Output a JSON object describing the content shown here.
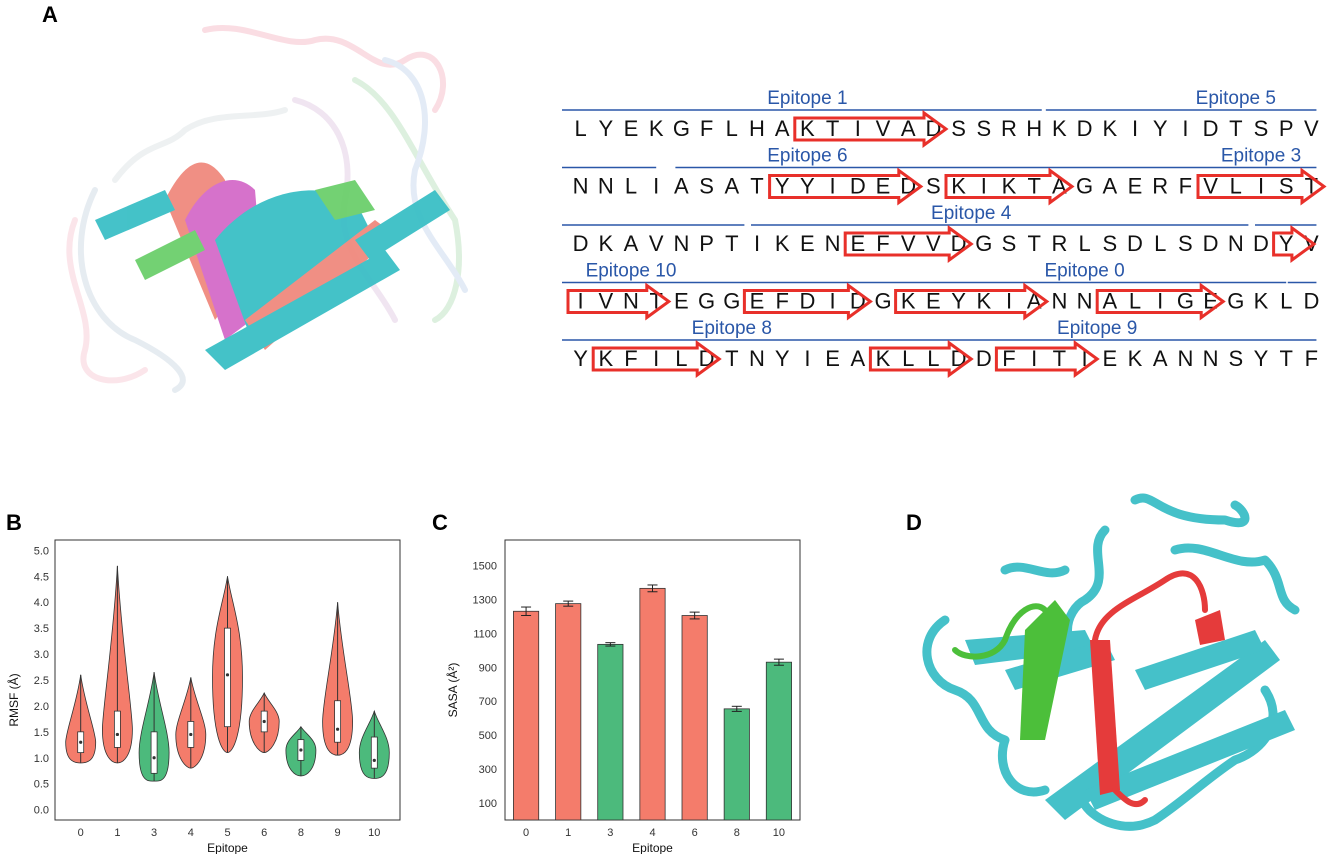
{
  "panels": {
    "a": "A",
    "b": "B",
    "c": "C",
    "d": "D"
  },
  "sequence": {
    "rows": [
      "LYEKGFLHAK TIVADSSRHK DKIYIDTSPV",
      "NNLIASATYY IDEDSKIKTA GAERFVLIST",
      "DKAVNPTIKE NEFVVDGSTR LSDLSDNDYV",
      "IVNTEGGEFD IDGKEYKIAN NALIGEGKLD",
      "YKFILDTNYI EAKLLDDFIT IEKANNSYTF"
    ],
    "epitope_labels": [
      {
        "text": "Epitope 1",
        "row": 0,
        "col": 9.5
      },
      {
        "text": "Epitope 5",
        "row": 0,
        "col": 26.5
      },
      {
        "text": "Epitope 6",
        "row": 1,
        "col": 9.5
      },
      {
        "text": "Epitope 3",
        "row": 1,
        "col": 27.5
      },
      {
        "text": "Epitope 4",
        "row": 2,
        "col": 16
      },
      {
        "text": "Epitope 10",
        "row": 3,
        "col": 2.5
      },
      {
        "text": "Epitope 0",
        "row": 3,
        "col": 20.5
      },
      {
        "text": "Epitope 8",
        "row": 4,
        "col": 6.5
      },
      {
        "text": "Epitope 9",
        "row": 4,
        "col": 21
      }
    ],
    "arrows": [
      {
        "row": 0,
        "start": 9,
        "end": 15
      },
      {
        "row": 1,
        "start": 8,
        "end": 14
      },
      {
        "row": 1,
        "start": 15,
        "end": 20
      },
      {
        "row": 1,
        "start": 25,
        "end": 30
      },
      {
        "row": 2,
        "start": 11,
        "end": 16
      },
      {
        "row": 2,
        "start": 28,
        "end": 29.6
      },
      {
        "row": 3,
        "start": 0,
        "end": 4
      },
      {
        "row": 3,
        "start": 7,
        "end": 12
      },
      {
        "row": 3,
        "start": 13,
        "end": 19
      },
      {
        "row": 3,
        "start": 21,
        "end": 26
      },
      {
        "row": 4,
        "start": 1,
        "end": 6
      },
      {
        "row": 4,
        "start": 12,
        "end": 16
      },
      {
        "row": 4,
        "start": 17,
        "end": 21
      }
    ],
    "blue_lines": [
      {
        "row": 0,
        "from": 0,
        "to": 18.8
      },
      {
        "row": 0,
        "from": 19.2,
        "to": 29.7
      },
      {
        "row": 1,
        "from": 0,
        "to": 3.5
      },
      {
        "row": 1,
        "from": 4.5,
        "to": 29.7
      },
      {
        "row": 2,
        "from": 0,
        "to": 7
      },
      {
        "row": 2,
        "from": 7.5,
        "to": 27
      },
      {
        "row": 2,
        "from": 27.5,
        "to": 29.7
      },
      {
        "row": 3,
        "from": 0,
        "to": 28.5
      },
      {
        "row": 3,
        "from": 28.8,
        "to": 29.7
      },
      {
        "row": 4,
        "from": 0,
        "to": 29.7
      }
    ]
  },
  "chart_data": [
    {
      "type": "violin",
      "panel": "B",
      "xlabel": "Epitope",
      "ylabel": "RMSF (Å)",
      "ylim": [
        0.0,
        5.0
      ],
      "yticks": [
        "0.0",
        "0.5",
        "1.0",
        "1.5",
        "2.0",
        "2.5",
        "3.0",
        "3.5",
        "4.0",
        "4.5",
        "5.0"
      ],
      "categories": [
        "0",
        "1",
        "3",
        "4",
        "5",
        "6",
        "8",
        "9",
        "10"
      ],
      "colors": [
        "#f47c6b",
        "#f47c6b",
        "#4cba7c",
        "#f47c6b",
        "#f47c6b",
        "#f47c6b",
        "#4cba7c",
        "#f47c6b",
        "#4cba7c"
      ],
      "min": [
        0.9,
        0.9,
        0.55,
        0.8,
        1.1,
        1.1,
        0.65,
        1.05,
        0.6
      ],
      "q1": [
        1.1,
        1.2,
        0.7,
        1.2,
        1.6,
        1.5,
        0.95,
        1.3,
        0.8
      ],
      "median": [
        1.3,
        1.45,
        1.0,
        1.45,
        2.6,
        1.7,
        1.15,
        1.55,
        0.95
      ],
      "q3": [
        1.5,
        1.9,
        1.5,
        1.7,
        3.5,
        1.9,
        1.35,
        2.1,
        1.4
      ],
      "max": [
        2.6,
        4.7,
        2.65,
        2.55,
        4.5,
        2.25,
        1.6,
        4.0,
        1.9
      ]
    },
    {
      "type": "bar",
      "panel": "C",
      "xlabel": "Epitope",
      "ylabel": "SASA (Å²)",
      "ylim": [
        0,
        1650
      ],
      "yticks": [
        "100",
        "300",
        "500",
        "700",
        "900",
        "1100",
        "1300",
        "1500"
      ],
      "categories": [
        "0",
        "1",
        "3",
        "4",
        "6",
        "8",
        "10"
      ],
      "values": [
        1230,
        1275,
        1035,
        1365,
        1205,
        655,
        930
      ],
      "errors": [
        25,
        15,
        10,
        20,
        20,
        15,
        18
      ],
      "colors": [
        "#f47c6b",
        "#f47c6b",
        "#4cba7c",
        "#f47c6b",
        "#f47c6b",
        "#4cba7c",
        "#4cba7c"
      ]
    }
  ]
}
